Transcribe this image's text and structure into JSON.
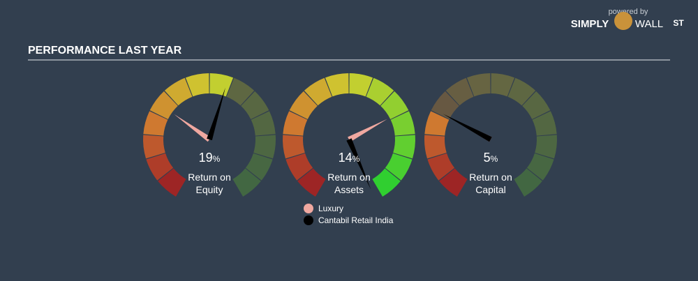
{
  "brand": {
    "powered": "powered by",
    "simply": "SIMPLY",
    "wall": "WALL",
    "st": "ST"
  },
  "chart_data": {
    "type": "gauge",
    "title": "PERFORMANCE LAST YEAR",
    "unit": "%",
    "categories": [
      "Return on Equity",
      "Return on Assets",
      "Return on Capital"
    ],
    "ylims": [
      [
        -20,
        50
      ],
      [
        -10,
        13.5
      ],
      [
        -10,
        41
      ]
    ],
    "series": [
      {
        "name": "Luxury",
        "color": "#f0a8a0",
        "values": [
          2.3,
          6.6,
          5
        ]
      },
      {
        "name": "Cantabil Retail India",
        "color": "#000000",
        "values": [
          19,
          14,
          5
        ]
      }
    ]
  }
}
